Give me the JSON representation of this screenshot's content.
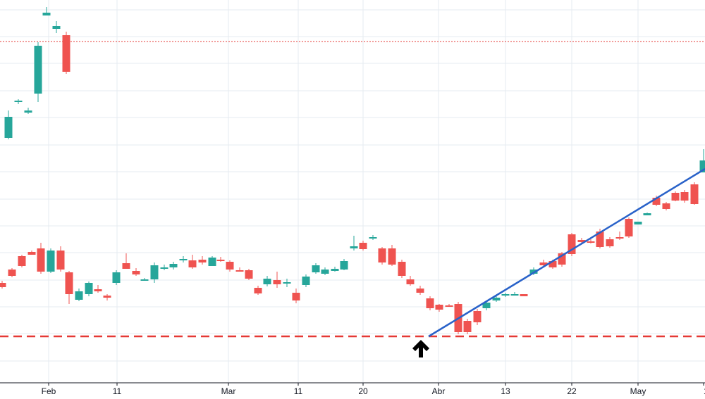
{
  "chart_data": {
    "type": "candlestick",
    "title": "",
    "xlabel": "",
    "ylabel": "",
    "grid": true,
    "legend": "none",
    "x_tick_labels": [
      "Feb",
      "11",
      "Mar",
      "11",
      "20",
      "Abr",
      "13",
      "22",
      "May",
      "1"
    ],
    "ylim": [
      0,
      567
    ],
    "colors": {
      "up": "#26a69a",
      "down": "#ef5350",
      "trendline": "#2962c9",
      "support": "#e53935",
      "resistance": "#e53935",
      "arrow": "#000000",
      "grid": "#e6ebf1",
      "axis": "#131722"
    },
    "candles": [
      [
        448,
        402,
        408,
        399,
        410
      ],
      [
        385,
        383,
        392,
        381,
        394
      ],
      [
        374,
        364,
        378,
        362,
        380
      ],
      [
        362,
        358,
        362,
        356,
        358
      ],
      [
        356,
        353,
        386,
        345,
        389
      ],
      [
        396,
        386,
        356,
        353,
        388
      ],
      [
        352,
        356,
        383,
        350,
        386
      ],
      [
        415,
        387,
        418,
        385,
        432
      ],
      [
        420,
        426,
        414,
        410,
        428
      ],
      [
        407,
        418,
        402,
        400,
        421
      ],
      [
        411,
        411,
        414,
        405,
        416
      ],
      [
        424,
        420,
        423,
        418,
        427
      ],
      [
        373,
        402,
        387,
        384,
        405
      ],
      [
        365,
        374,
        382,
        360,
        382
      ],
      [
        380,
        385,
        390,
        381,
        392
      ],
      [
        395,
        398,
        397,
        395,
        399
      ],
      [
        401,
        397,
        377,
        373,
        402
      ],
      [
        380,
        382,
        380,
        376,
        384
      ],
      [
        390,
        380,
        375,
        372,
        383
      ],
      [
        376,
        370,
        368,
        364,
        373
      ],
      [
        368,
        370,
        380,
        362,
        382
      ],
      [
        371,
        369,
        373,
        364,
        376
      ],
      [
        366,
        378,
        366,
        364,
        378
      ],
      [
        371,
        369,
        369,
        365,
        372
      ],
      [
        374,
        372,
        383,
        370,
        386
      ],
      [
        378,
        384,
        384,
        380,
        385
      ],
      [
        388,
        384,
        396,
        382,
        398
      ],
      [
        410,
        409,
        417,
        406,
        419
      ],
      [
        380,
        404,
        396,
        392,
        407
      ],
      [
        380,
        398,
        404,
        386,
        409
      ],
      [
        407,
        403,
        401,
        396,
        408
      ],
      [
        413,
        416,
        427,
        410,
        431
      ],
      [
        401,
        405,
        393,
        390,
        408
      ],
      [
        376,
        387,
        377,
        374,
        389
      ],
      [
        386,
        389,
        383,
        380,
        391
      ],
      [
        381,
        385,
        382,
        379,
        386
      ],
      [
        379,
        383,
        371,
        368,
        384
      ],
      [
        366,
        353,
        350,
        335,
        356
      ],
      [
        349,
        345,
        354,
        342,
        356
      ],
      [
        336,
        339,
        337,
        334,
        341
      ],
      [
        364,
        353,
        373,
        351,
        376
      ],
      [
        368,
        353,
        376,
        348,
        378
      ],
      [
        387,
        372,
        392,
        369,
        395
      ],
      [
        396,
        397,
        404,
        392,
        406
      ],
      [
        412,
        410,
        416,
        406,
        419
      ],
      [
        426,
        424,
        438,
        421,
        441
      ],
      [
        436,
        433,
        440,
        432,
        443
      ],
      [
        423,
        434,
        435,
        432,
        436
      ],
      [
        456,
        432,
        472,
        429,
        475
      ],
      [
        465,
        456,
        472,
        453,
        475
      ],
      [
        454,
        442,
        458,
        439,
        462
      ],
      [
        431,
        438,
        430,
        427,
        441
      ],
      [
        422,
        427,
        423,
        420,
        429
      ],
      [
        418,
        420,
        418,
        416,
        422
      ],
      [
        437,
        419,
        418,
        415,
        419
      ],
      [
        421,
        418,
        421,
        418,
        421
      ],
      [
        389,
        389,
        383,
        380,
        391
      ],
      [
        390,
        373,
        377,
        369,
        380
      ],
      [
        375,
        371,
        380,
        369,
        382
      ],
      [
        361,
        360,
        376,
        358,
        379
      ],
      [
        340,
        333,
        361,
        331,
        364
      ],
      [
        337,
        341,
        344,
        338,
        346
      ],
      [
        362,
        343,
        343,
        340,
        346
      ],
      [
        337,
        329,
        351,
        325,
        353
      ],
      [
        343,
        340,
        350,
        337,
        352
      ],
      [
        341,
        337,
        337,
        329,
        341
      ],
      [
        303,
        311,
        336,
        309,
        338
      ],
      [
        316,
        319,
        315,
        315,
        317
      ],
      [
        302,
        306,
        303,
        302,
        304
      ],
      [
        281,
        281,
        291,
        278,
        293
      ],
      [
        291,
        289,
        297,
        287,
        299
      ],
      [
        273,
        274,
        285,
        272,
        286
      ],
      [
        273,
        273,
        285,
        270,
        288
      ],
      [
        264,
        262,
        290,
        259,
        291
      ],
      [
        249,
        245,
        228,
        212,
        243
      ],
      [
        198,
        196,
        166,
        157,
        198
      ],
      [
        175,
        145,
        143,
        141,
        148
      ],
      [
        160,
        160,
        157,
        153,
        162
      ],
      [
        164,
        133,
        65,
        60,
        145
      ],
      [
        28,
        22,
        18,
        10,
        22
      ],
      [
        43,
        41,
        37,
        30,
        47
      ],
      [
        58,
        50,
        102,
        45,
        105
      ]
    ],
    "candle_x": [
      3,
      17,
      31,
      45,
      58,
      72,
      86,
      98,
      112,
      126,
      139,
      152,
      165,
      179,
      193,
      205,
      219,
      233,
      246,
      260,
      273,
      287,
      301,
      313,
      326,
      340,
      353,
      366,
      379,
      393,
      407,
      420,
      434,
      448,
      461,
      475,
      488,
      502,
      515,
      529,
      542,
      556,
      570,
      582,
      596,
      610,
      623,
      637,
      650,
      663,
      677,
      690,
      704,
      717,
      730,
      743,
      757,
      771,
      784,
      797,
      811,
      825,
      838,
      851,
      865,
      879,
      892,
      905,
      918,
      931,
      945,
      958,
      971,
      985,
      998,
      12,
      26,
      40,
      54,
      66,
      80,
      94
    ]
  },
  "annotations": {
    "support_level": 478,
    "resistance_level": 59,
    "trendline": [
      [
        608,
        478
      ],
      [
        1000,
        240
      ]
    ],
    "arrow_at": [
      597,
      483
    ]
  }
}
